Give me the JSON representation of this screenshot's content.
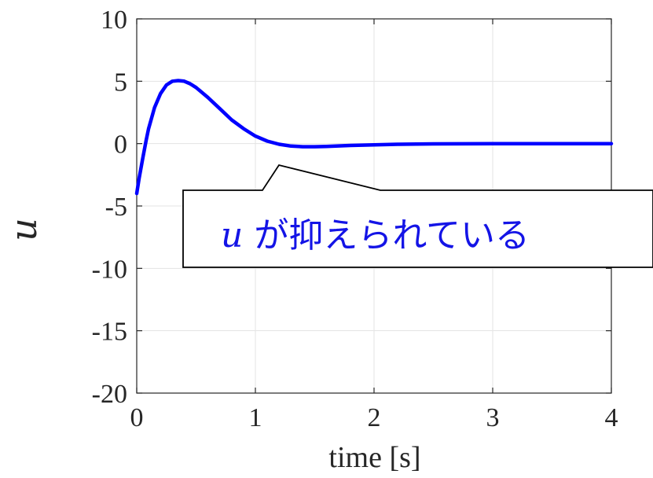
{
  "chart_data": {
    "type": "line",
    "title": "",
    "xlabel": "time [s]",
    "ylabel": "u",
    "xlim": [
      0,
      4
    ],
    "ylim": [
      -20,
      10
    ],
    "xticks": [
      0,
      1,
      2,
      3,
      4
    ],
    "yticks": [
      10,
      5,
      0,
      -5,
      -10,
      -15,
      -20
    ],
    "grid": true,
    "series": [
      {
        "color": "#0000ff",
        "x": [
          0,
          0.02,
          0.05,
          0.08,
          0.1,
          0.15,
          0.2,
          0.25,
          0.3,
          0.35,
          0.4,
          0.45,
          0.5,
          0.6,
          0.7,
          0.8,
          0.9,
          1.0,
          1.1,
          1.2,
          1.3,
          1.4,
          1.5,
          1.6,
          1.8,
          2.0,
          2.2,
          2.5,
          3.0,
          3.5,
          4.0
        ],
        "y": [
          -4.0,
          -2.8,
          -1.2,
          0.3,
          1.2,
          2.9,
          4.0,
          4.7,
          5.0,
          5.05,
          5.0,
          4.8,
          4.5,
          3.7,
          2.8,
          1.9,
          1.2,
          0.6,
          0.2,
          -0.05,
          -0.2,
          -0.25,
          -0.25,
          -0.22,
          -0.15,
          -0.1,
          -0.05,
          -0.02,
          0.0,
          0.0,
          0.0
        ]
      }
    ],
    "annotations": [
      {
        "var": "u",
        "text": " が抑えられている"
      }
    ]
  }
}
